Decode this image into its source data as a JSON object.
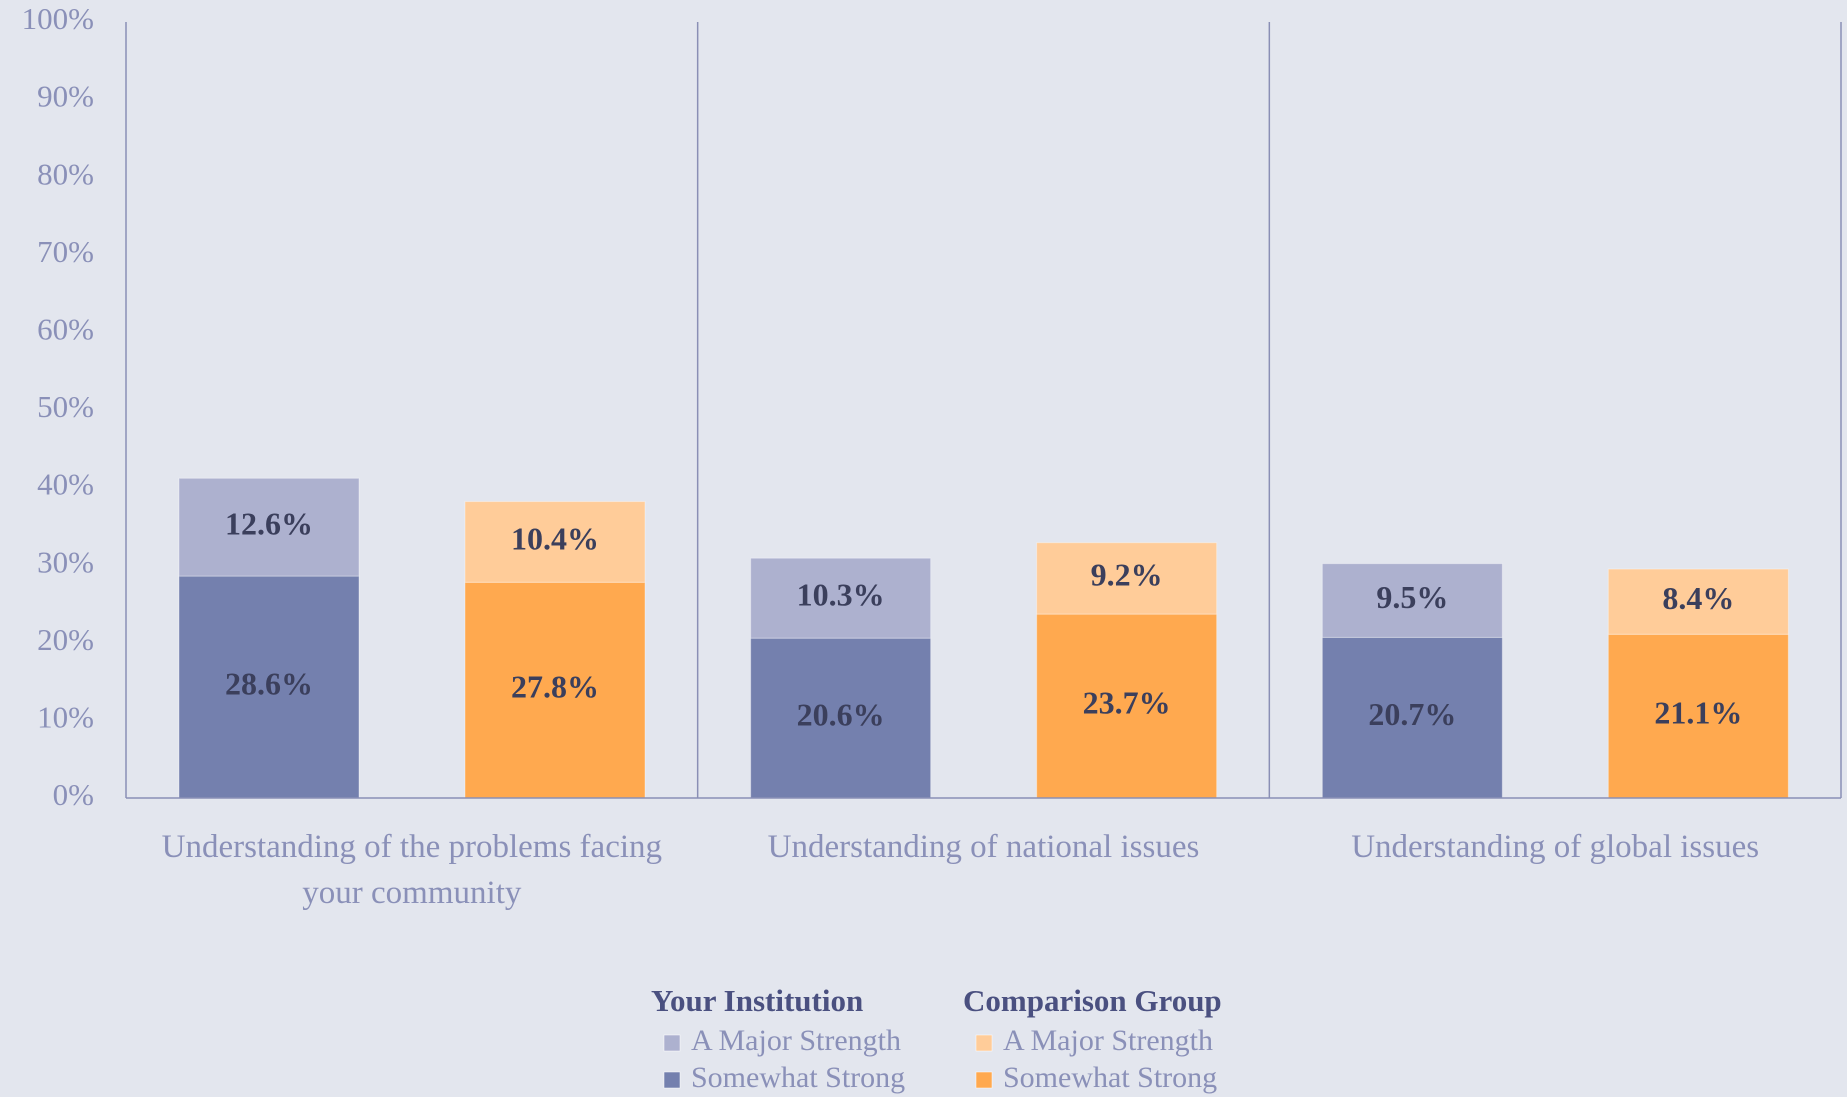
{
  "chart_data": {
    "type": "bar",
    "stacked": true,
    "categories": [
      "Understanding of the problems facing your community",
      "Understanding of national issues",
      "Understanding of global issues"
    ],
    "groups": [
      {
        "name": "Your Institution",
        "series": [
          {
            "name": "A Major Strength",
            "color": "#adb1cf",
            "values": [
              12.6,
              10.3,
              9.5
            ],
            "value_labels": [
              "12.6%",
              "10.3%",
              "9.5%"
            ]
          },
          {
            "name": "Somewhat Strong",
            "color": "#7480ae",
            "values": [
              28.6,
              20.6,
              20.7
            ],
            "value_labels": [
              "28.6%",
              "20.6%",
              "20.7%"
            ]
          }
        ]
      },
      {
        "name": "Comparison Group",
        "series": [
          {
            "name": "A Major Strength",
            "color": "#ffcc99",
            "values": [
              10.4,
              9.2,
              8.4
            ],
            "value_labels": [
              "10.4%",
              "9.2%",
              "8.4%"
            ]
          },
          {
            "name": "Somewhat Strong",
            "color": "#ffa94f",
            "values": [
              27.8,
              23.7,
              21.1
            ],
            "value_labels": [
              "27.8%",
              "23.7%",
              "21.1%"
            ]
          }
        ]
      }
    ],
    "ylim": [
      0,
      100
    ],
    "yticks": [
      {
        "value": 0,
        "label": "0%"
      },
      {
        "value": 10,
        "label": "10%"
      },
      {
        "value": 20,
        "label": "20%"
      },
      {
        "value": 30,
        "label": "30%"
      },
      {
        "value": 40,
        "label": "40%"
      },
      {
        "value": 50,
        "label": "50%"
      },
      {
        "value": 60,
        "label": "60%"
      },
      {
        "value": 70,
        "label": "70%"
      },
      {
        "value": 80,
        "label": "80%"
      },
      {
        "value": 90,
        "label": "90%"
      },
      {
        "value": 100,
        "label": "100%"
      }
    ],
    "grid": false
  }
}
